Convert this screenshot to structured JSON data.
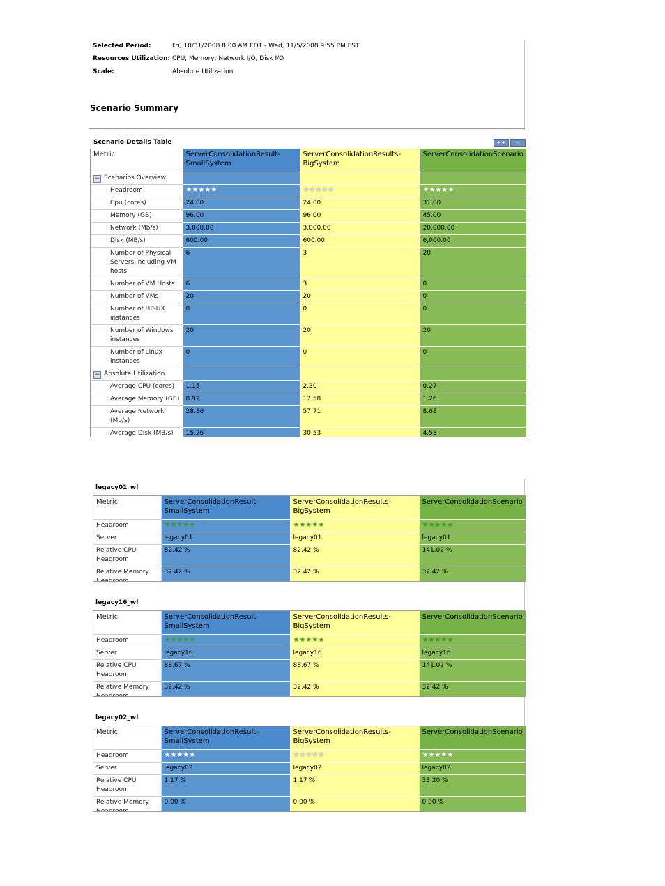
{
  "meta": {
    "period_label": "Selected Period:",
    "period_value": "Fri, 10/31/2008 8:00 AM EDT - Wed, 11/5/2008 9:55 PM EST",
    "resources_label": "Resources Utilization:",
    "resources_value": "CPU, Memory, Network I/O, Disk I/O",
    "scale_label": "Scale:",
    "scale_value": "Absolute Utilization"
  },
  "scenario_summary_title": "Scenario Summary",
  "details_table": {
    "caption": "Scenario Details Table",
    "expand_button": "++",
    "collapse_button": "--",
    "metric_header": "Metric",
    "columns": [
      "ServerConsolidationResult-SmallSystem",
      "ServerConsolidationResults-BigSystem",
      "ServerConsolidationScenario"
    ],
    "section_overview": "Scenarios Overview",
    "section_absolute": "Absolute Utilization",
    "rows": [
      {
        "label": "Headroom",
        "values": [
          "★★★★★",
          "★★★★★",
          "★★★★★"
        ]
      },
      {
        "label": "Cpu (cores)",
        "values": [
          "24.00",
          "24.00",
          "31.00"
        ]
      },
      {
        "label": "Memory (GB)",
        "values": [
          "96.00",
          "96.00",
          "45.00"
        ]
      },
      {
        "label": "Network (Mb/s)",
        "values": [
          "3,000.00",
          "3,000.00",
          "20,000.00"
        ]
      },
      {
        "label": "Disk (MB/s)",
        "values": [
          "600.00",
          "600.00",
          "6,000.00"
        ]
      },
      {
        "label": "Number of Physical Servers including VM hosts",
        "values": [
          "6",
          "3",
          "20"
        ]
      },
      {
        "label": "Number of VM Hosts",
        "values": [
          "6",
          "3",
          "0"
        ]
      },
      {
        "label": "Number of VMs",
        "values": [
          "20",
          "20",
          "0"
        ]
      },
      {
        "label": "Number of HP-UX instances",
        "values": [
          "0",
          "0",
          "0"
        ]
      },
      {
        "label": "Number of Windows instances",
        "values": [
          "20",
          "20",
          "20"
        ]
      },
      {
        "label": "Number of Linux instances",
        "values": [
          "0",
          "0",
          "0"
        ]
      }
    ],
    "abs_rows": [
      {
        "label": "Average CPU (cores)",
        "values": [
          "1.15",
          "2.30",
          "0.27"
        ]
      },
      {
        "label": "Average Memory (GB)",
        "values": [
          "8.92",
          "17.58",
          "1.26"
        ]
      },
      {
        "label": "Average Network (Mb/s)",
        "values": [
          "28.86",
          "57.71",
          "8.68"
        ]
      },
      {
        "label": "Average Disk (MB/s)",
        "values": [
          "15.26",
          "30.53",
          "4.58"
        ]
      }
    ]
  },
  "workloads": [
    {
      "title": "legacy01_wl",
      "metric_header": "Metric",
      "columns": [
        "ServerConsolidationResult-SmallSystem",
        "ServerConsolidationResults-BigSystem",
        "ServerConsolidationScenario"
      ],
      "headroom_label": "Headroom",
      "headroom_stars": [
        "★★★★★",
        "★★★★★",
        "★★★★★"
      ],
      "server_label": "Server",
      "server": [
        "legacy01",
        "legacy01",
        "legacy01"
      ],
      "cpu_label": "Relative CPU Headroom",
      "cpu": [
        "82.42 %",
        "82.42 %",
        "141.02 %"
      ],
      "mem_label": "Relative Memory Headroom",
      "mem": [
        "32.42 %",
        "32.42 %",
        "32.42 %"
      ]
    },
    {
      "title": "legacy16_wl",
      "metric_header": "Metric",
      "columns": [
        "ServerConsolidationResult-SmallSystem",
        "ServerConsolidationResults-BigSystem",
        "ServerConsolidationScenario"
      ],
      "headroom_label": "Headroom",
      "headroom_stars": [
        "★★★★★",
        "★★★★★",
        "★★★★★"
      ],
      "server_label": "Server",
      "server": [
        "legacy16",
        "legacy16",
        "legacy16"
      ],
      "cpu_label": "Relative CPU Headroom",
      "cpu": [
        "88.67 %",
        "88.67 %",
        "141.02 %"
      ],
      "mem_label": "Relative Memory Headroom",
      "mem": [
        "32.42 %",
        "32.42 %",
        "32.42 %"
      ]
    },
    {
      "title": "legacy02_wl",
      "metric_header": "Metric",
      "columns": [
        "ServerConsolidationResult-SmallSystem",
        "ServerConsolidationResults-BigSystem",
        "ServerConsolidationScenario"
      ],
      "headroom_label": "Headroom",
      "headroom_stars": [
        "★★★★★",
        "★★★★★",
        "★★★★★"
      ],
      "server_label": "Server",
      "server": [
        "legacy02",
        "legacy02",
        "legacy02"
      ],
      "cpu_label": "Relative CPU Headroom",
      "cpu": [
        "1.17 %",
        "1.17 %",
        "33.20 %"
      ],
      "mem_label": "Relative Memory Headroom",
      "mem": [
        "0.00 %",
        "0.00 %",
        "0.00 %"
      ]
    }
  ]
}
